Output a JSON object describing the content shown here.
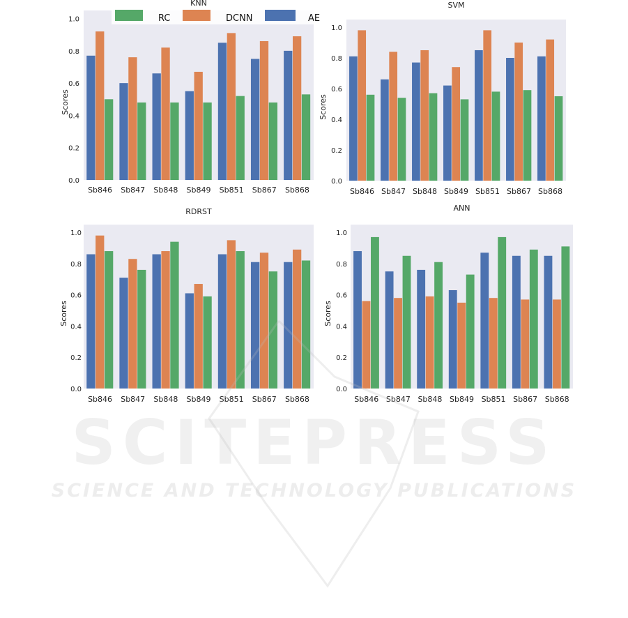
{
  "legend": {
    "items": [
      {
        "label": "RC",
        "color": "#55a868"
      },
      {
        "label": "DCNN",
        "color": "#dd8452"
      },
      {
        "label": "AE",
        "color": "#4c72b0"
      }
    ]
  },
  "watermark": {
    "title": "SCITEPRESS",
    "subtitle": "SCIENCE AND TECHNOLOGY PUBLICATIONS"
  },
  "chart_data": [
    {
      "type": "bar",
      "title": "KNN",
      "xlabel": "",
      "ylabel": "Scores",
      "ylim": [
        0,
        1.05
      ],
      "yticks": [
        "0.0",
        "0.2",
        "0.4",
        "0.6",
        "0.8",
        "1.0"
      ],
      "grid": false,
      "categories": [
        "Sb846",
        "Sb847",
        "Sb848",
        "Sb849",
        "Sb851",
        "Sb867",
        "Sb868"
      ],
      "series": [
        {
          "name": "AE",
          "color": "#4c72b0",
          "values": [
            0.77,
            0.6,
            0.66,
            0.55,
            0.85,
            0.75,
            0.8
          ]
        },
        {
          "name": "DCNN",
          "color": "#dd8452",
          "values": [
            0.92,
            0.76,
            0.82,
            0.67,
            0.91,
            0.86,
            0.89
          ]
        },
        {
          "name": "RC",
          "color": "#55a868",
          "values": [
            0.5,
            0.48,
            0.48,
            0.48,
            0.52,
            0.48,
            0.53
          ]
        }
      ]
    },
    {
      "type": "bar",
      "title": "SVM",
      "xlabel": "",
      "ylabel": "Scores",
      "ylim": [
        0,
        1.05
      ],
      "yticks": [
        "0.0",
        "0.2",
        "0.4",
        "0.6",
        "0.8",
        "1.0"
      ],
      "grid": false,
      "categories": [
        "Sb846",
        "Sb847",
        "Sb848",
        "Sb849",
        "Sb851",
        "Sb867",
        "Sb868"
      ],
      "series": [
        {
          "name": "AE",
          "color": "#4c72b0",
          "values": [
            0.81,
            0.66,
            0.77,
            0.62,
            0.85,
            0.8,
            0.81
          ]
        },
        {
          "name": "DCNN",
          "color": "#dd8452",
          "values": [
            0.98,
            0.84,
            0.85,
            0.74,
            0.98,
            0.9,
            0.92
          ]
        },
        {
          "name": "RC",
          "color": "#55a868",
          "values": [
            0.56,
            0.54,
            0.57,
            0.53,
            0.58,
            0.59,
            0.55
          ]
        }
      ]
    },
    {
      "type": "bar",
      "title": "RDRST",
      "xlabel": "",
      "ylabel": "Scores",
      "ylim": [
        0,
        1.05
      ],
      "yticks": [
        "0.0",
        "0.2",
        "0.4",
        "0.6",
        "0.8",
        "1.0"
      ],
      "grid": false,
      "categories": [
        "Sb846",
        "Sb847",
        "Sb848",
        "Sb849",
        "Sb851",
        "Sb867",
        "Sb868"
      ],
      "series": [
        {
          "name": "AE",
          "color": "#4c72b0",
          "values": [
            0.86,
            0.71,
            0.86,
            0.61,
            0.86,
            0.81,
            0.81
          ]
        },
        {
          "name": "DCNN",
          "color": "#dd8452",
          "values": [
            0.98,
            0.83,
            0.88,
            0.67,
            0.95,
            0.87,
            0.89
          ]
        },
        {
          "name": "RC",
          "color": "#55a868",
          "values": [
            0.88,
            0.76,
            0.94,
            0.59,
            0.88,
            0.75,
            0.82
          ]
        }
      ]
    },
    {
      "type": "bar",
      "title": "ANN",
      "xlabel": "",
      "ylabel": "Scores",
      "ylim": [
        0,
        1.05
      ],
      "yticks": [
        "0.0",
        "0.2",
        "0.4",
        "0.6",
        "0.8",
        "1.0"
      ],
      "grid": false,
      "categories": [
        "Sb846",
        "Sb847",
        "Sb848",
        "Sb849",
        "Sb851",
        "Sb867",
        "Sb868"
      ],
      "series": [
        {
          "name": "AE",
          "color": "#4c72b0",
          "values": [
            0.88,
            0.75,
            0.76,
            0.63,
            0.87,
            0.85,
            0.85
          ]
        },
        {
          "name": "DCNN",
          "color": "#dd8452",
          "values": [
            0.56,
            0.58,
            0.59,
            0.55,
            0.58,
            0.57,
            0.57
          ]
        },
        {
          "name": "RC",
          "color": "#55a868",
          "values": [
            0.97,
            0.85,
            0.81,
            0.73,
            0.97,
            0.89,
            0.91
          ]
        }
      ]
    }
  ]
}
